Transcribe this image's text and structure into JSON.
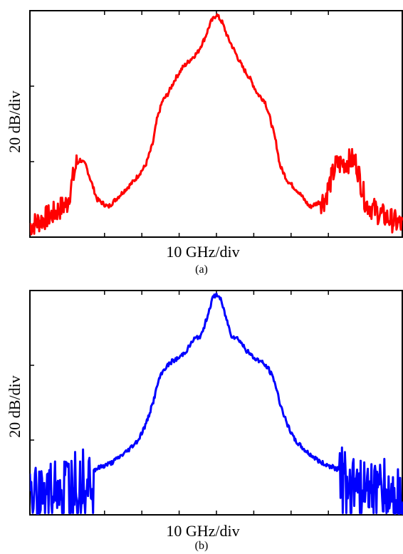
{
  "chart_data": [
    {
      "type": "line",
      "panel": "(a)",
      "xlabel": "10 GHz/div",
      "ylabel": "20 dB/div",
      "xlim": [
        -50,
        50
      ],
      "ylim": [
        -60,
        0
      ],
      "x_ticks": [
        -30,
        -20,
        -10,
        0,
        10,
        20,
        30
      ],
      "y_ticks": [
        -40,
        -20
      ],
      "grid": false,
      "color": "#ff0000",
      "noisy_x_ranges": [
        [
          -50,
          -37
        ],
        [
          28,
          50
        ]
      ],
      "series": [
        {
          "x": [
            -50,
            -44,
            -40,
            -37.5,
            -36.5,
            -35,
            -32,
            -29,
            -25,
            -22,
            -19,
            -17,
            -16,
            -14.5,
            -13,
            -11,
            -9,
            -7,
            -5,
            -3,
            -1.5,
            0,
            1.5,
            3,
            5,
            7,
            9,
            11,
            13,
            14.5,
            16,
            17,
            19,
            22,
            25,
            29,
            32,
            35,
            36.5,
            37.5,
            40,
            44,
            50
          ],
          "y": [
            -57,
            -54,
            -51,
            -40.5,
            -39.5,
            -41,
            -50,
            -52,
            -48,
            -45,
            -41,
            -35,
            -29,
            -24,
            -22,
            -18,
            -15,
            -13,
            -11,
            -7,
            -3,
            -1,
            -3,
            -7,
            -11,
            -15,
            -18,
            -22,
            -24,
            -29,
            -35,
            -41,
            -45,
            -48,
            -52,
            -50,
            -41,
            -40,
            -39.5,
            -40.5,
            -51,
            -54,
            -57
          ]
        }
      ]
    },
    {
      "type": "line",
      "panel": "(b)",
      "xlabel": "10 GHz/div",
      "ylabel": "20 dB/div",
      "xlim": [
        -50,
        50
      ],
      "ylim": [
        -60,
        0
      ],
      "x_ticks": [
        -30,
        -20,
        -10,
        0,
        10,
        20,
        30
      ],
      "y_ticks": [
        -40,
        -20
      ],
      "grid": false,
      "color": "#0000ff",
      "noisy_x_ranges": [
        [
          -50,
          -33
        ],
        [
          33,
          50
        ]
      ],
      "series": [
        {
          "x": [
            -50,
            -45,
            -40,
            -36,
            -33,
            -28,
            -24,
            -21,
            -19,
            -17,
            -15.5,
            -14,
            -12,
            -10,
            -8,
            -6,
            -4,
            -2.5,
            -1,
            0,
            1,
            2.5,
            4,
            6,
            8,
            10,
            12,
            14,
            15.5,
            17,
            19,
            21,
            24,
            28,
            33,
            36,
            40,
            45,
            50
          ],
          "y": [
            -56,
            -52,
            -51,
            -50,
            -48,
            -46,
            -43,
            -40,
            -36,
            -30,
            -24,
            -21,
            -19,
            -18,
            -16,
            -13,
            -12,
            -7,
            -2,
            -1,
            -2,
            -7,
            -12,
            -13,
            -16,
            -18,
            -19,
            -21,
            -24,
            -30,
            -36,
            -40,
            -43,
            -46,
            -48,
            -50,
            -51,
            -52,
            -56
          ]
        }
      ]
    }
  ]
}
